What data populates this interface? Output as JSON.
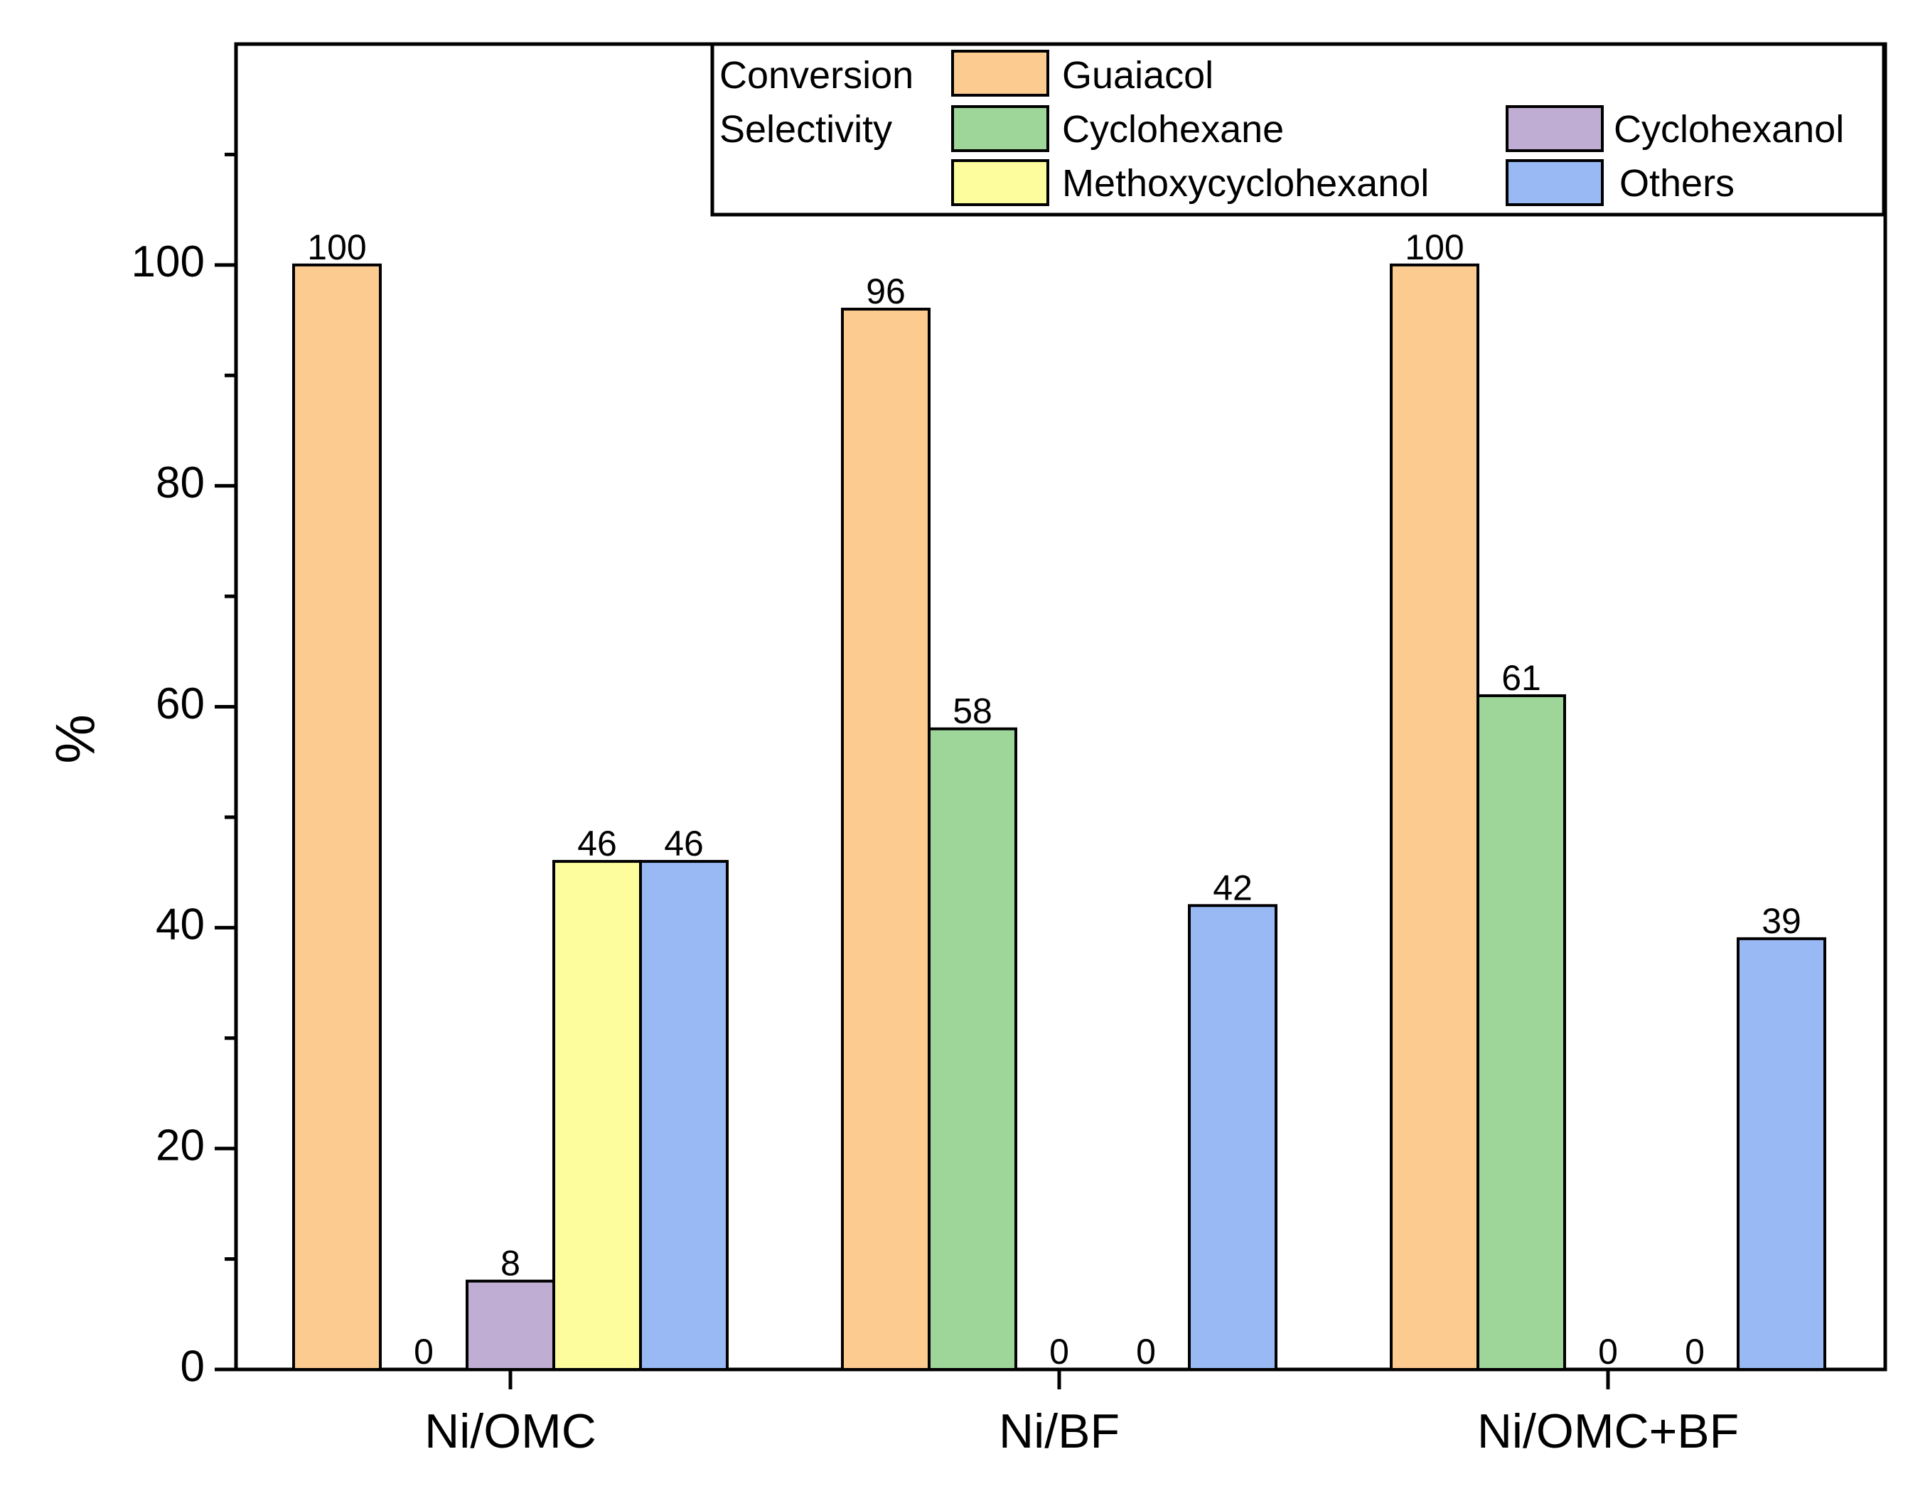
{
  "chart_data": {
    "type": "bar",
    "title": "",
    "xlabel": "",
    "ylabel": "%",
    "ylim": [
      0,
      120
    ],
    "yticks": [
      0,
      20,
      40,
      60,
      80,
      100
    ],
    "grid": false,
    "legend_position": "top-right",
    "categories": [
      "Ni/OMC",
      "Ni/BF",
      "Ni/OMC+BF"
    ],
    "legend_group_labels": {
      "conversion": "Conversion",
      "selectivity": "Selectivity"
    },
    "series": [
      {
        "name": "Guaiacol",
        "group": "conversion",
        "color": "#FCCB8F",
        "values": [
          100,
          96,
          100
        ],
        "labels": [
          "100",
          "96",
          "100"
        ]
      },
      {
        "name": "Cyclohexane",
        "group": "selectivity",
        "color": "#9ED69A",
        "values": [
          0,
          58,
          61
        ],
        "labels": [
          "0",
          "58",
          "61"
        ]
      },
      {
        "name": "Cyclohexanol",
        "group": "selectivity",
        "color": "#C0ADD3",
        "values": [
          8,
          0,
          0
        ],
        "labels": [
          "8",
          "0",
          "0"
        ]
      },
      {
        "name": "Methoxycyclohexanol",
        "group": "selectivity",
        "color": "#FEFD9E",
        "values": [
          46,
          0,
          0
        ],
        "labels": [
          "46",
          "0",
          "0"
        ]
      },
      {
        "name": "Others",
        "group": "selectivity",
        "color": "#99B9F4",
        "values": [
          46,
          42,
          39
        ],
        "labels": [
          "46",
          "42",
          "39"
        ]
      }
    ]
  }
}
